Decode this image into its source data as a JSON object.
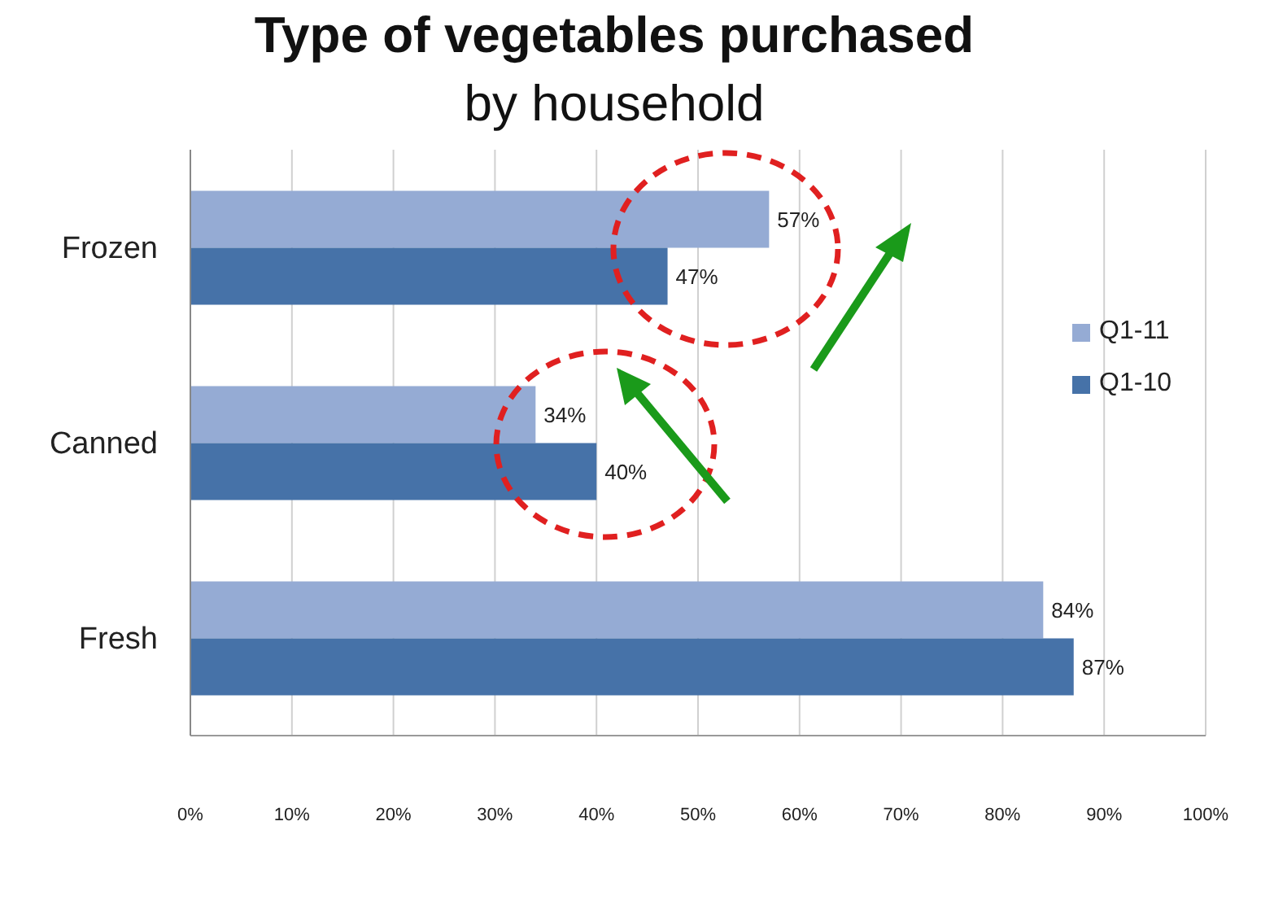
{
  "chart_data": {
    "type": "bar",
    "orientation": "horizontal",
    "title": "Type of vegetables purchased",
    "subtitle": "by household",
    "categories": [
      "Frozen",
      "Canned",
      "Fresh"
    ],
    "series": [
      {
        "name": "Q1-11",
        "color": "#95abd4",
        "values": [
          57,
          34,
          84
        ],
        "value_labels": [
          "57%",
          "34%",
          "84%"
        ]
      },
      {
        "name": "Q1-10",
        "color": "#4672a8",
        "values": [
          47,
          40,
          87
        ],
        "value_labels": [
          "47%",
          "40%",
          "87%"
        ]
      }
    ],
    "xlim": [
      0,
      100
    ],
    "xticks": [
      {
        "value": 0,
        "label": "0%"
      },
      {
        "value": 10,
        "label": "10%"
      },
      {
        "value": 20,
        "label": "20%"
      },
      {
        "value": 30,
        "label": "30%"
      },
      {
        "value": 40,
        "label": "40%"
      },
      {
        "value": 50,
        "label": "50%"
      },
      {
        "value": 60,
        "label": "60%"
      },
      {
        "value": 70,
        "label": "70%"
      },
      {
        "value": 80,
        "label": "80%"
      },
      {
        "value": 90,
        "label": "90%"
      },
      {
        "value": 100,
        "label": "100%"
      }
    ],
    "grid": "x",
    "legend": "right"
  }
}
